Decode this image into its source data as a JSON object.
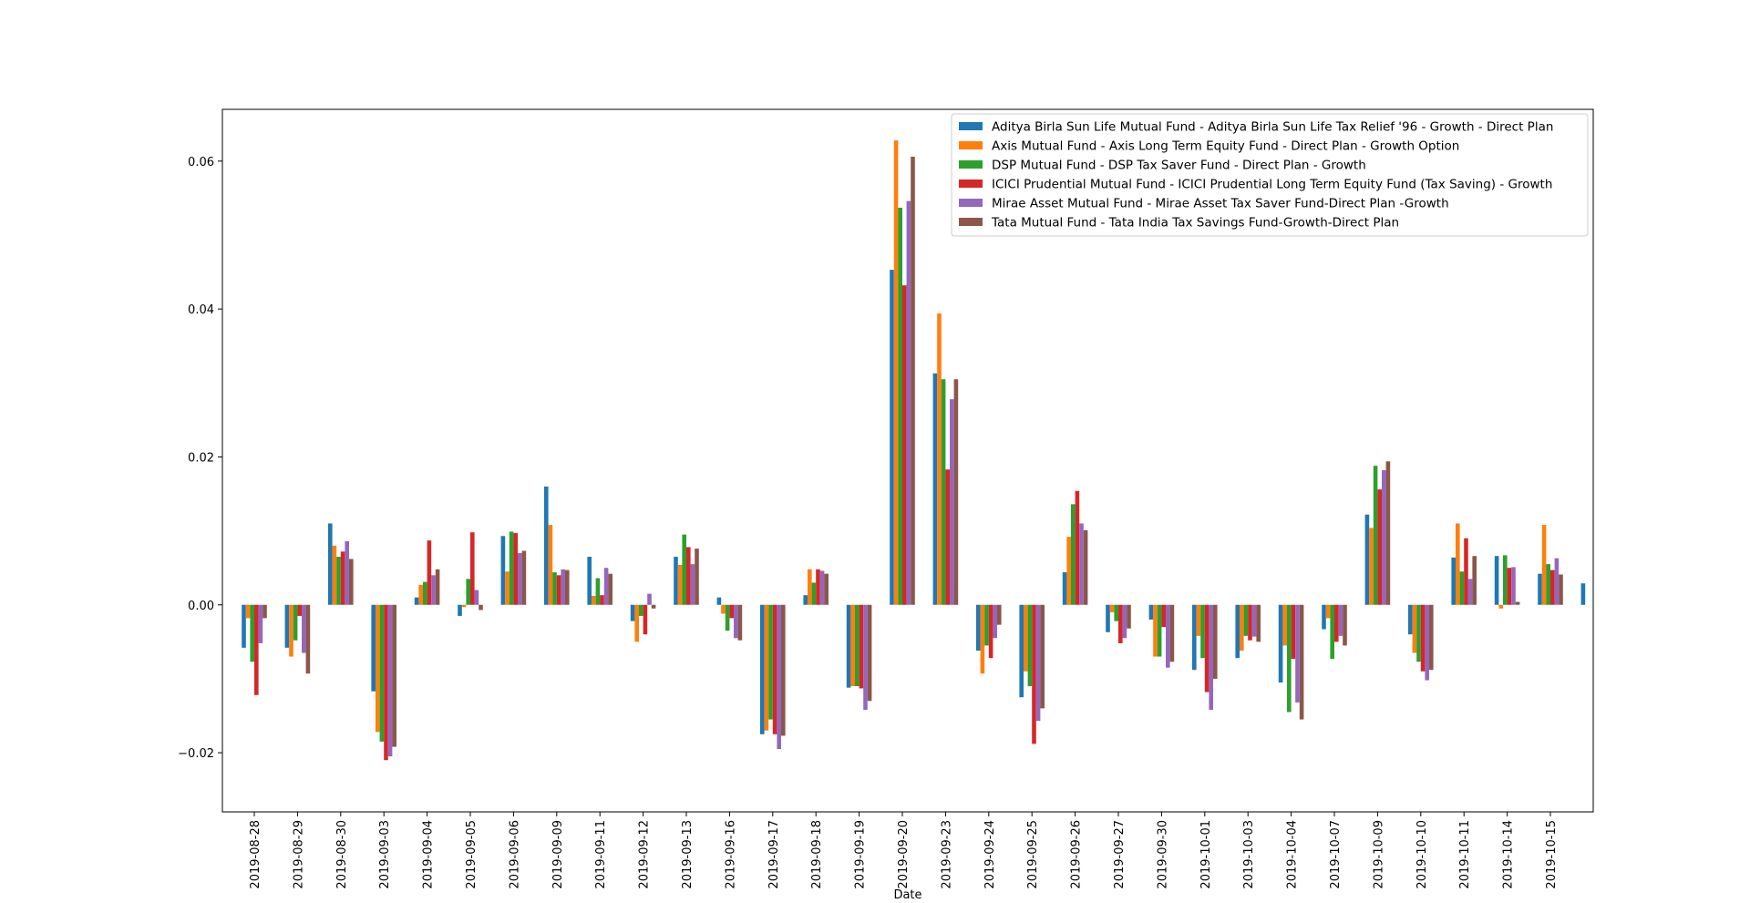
{
  "chart_data": {
    "type": "bar",
    "title": "",
    "xlabel": "Date",
    "ylabel": "",
    "ylim": [
      -0.028,
      0.067
    ],
    "yticks": [
      -0.02,
      0.0,
      0.02,
      0.04,
      0.06
    ],
    "ytick_labels": [
      "−0.02",
      "0.00",
      "0.02",
      "0.04",
      "0.06"
    ],
    "grid": false,
    "legend_position": "top-right",
    "categories": [
      "2019-08-28",
      "2019-08-29",
      "2019-08-30",
      "2019-09-03",
      "2019-09-04",
      "2019-09-05",
      "2019-09-06",
      "2019-09-09",
      "2019-09-11",
      "2019-09-12",
      "2019-09-13",
      "2019-09-16",
      "2019-09-17",
      "2019-09-18",
      "2019-09-19",
      "2019-09-20",
      "2019-09-23",
      "2019-09-24",
      "2019-09-25",
      "2019-09-26",
      "2019-09-27",
      "2019-09-30",
      "2019-10-01",
      "2019-10-03",
      "2019-10-04",
      "2019-10-07",
      "2019-10-09",
      "2019-10-10",
      "2019-10-11",
      "2019-10-14",
      "2019-10-15",
      ""
    ],
    "series": [
      {
        "name": "Aditya Birla Sun Life Mutual Fund - Aditya Birla Sun Life Tax Relief '96 - Growth - Direct Plan",
        "color": "#1f77b4",
        "values": [
          -0.0058,
          -0.0058,
          0.011,
          -0.0117,
          0.001,
          -0.0015,
          0.0093,
          0.016,
          0.0065,
          -0.0022,
          0.0065,
          0.001,
          -0.0175,
          0.0013,
          -0.0112,
          0.0453,
          0.0313,
          -0.0062,
          -0.0125,
          0.0044,
          -0.0037,
          -0.002,
          -0.0088,
          -0.0072,
          -0.0105,
          -0.0033,
          0.0122,
          -0.004,
          0.0064,
          0.0066,
          0.0042,
          0.0029
        ]
      },
      {
        "name": "Axis Mutual Fund - Axis Long Term Equity Fund - Direct Plan - Growth Option",
        "color": "#ff7f0e",
        "values": [
          -0.0018,
          -0.007,
          0.008,
          -0.0172,
          0.0027,
          -0.0003,
          0.0045,
          0.0108,
          0.0012,
          -0.005,
          0.0054,
          -0.0012,
          -0.017,
          0.0048,
          -0.011,
          0.0628,
          0.0394,
          -0.0093,
          -0.009,
          0.0092,
          -0.001,
          -0.007,
          -0.0042,
          -0.0062,
          -0.0055,
          -0.0018,
          0.0104,
          -0.0065,
          0.011,
          -0.0005,
          0.0108,
          0
        ]
      },
      {
        "name": "DSP Mutual Fund - DSP Tax Saver Fund - Direct Plan - Growth",
        "color": "#2ca02c",
        "values": [
          -0.0077,
          -0.0048,
          0.0065,
          -0.0185,
          0.0031,
          0.0035,
          0.0099,
          0.0044,
          0.0036,
          -0.0015,
          0.0095,
          -0.0035,
          -0.0155,
          0.003,
          -0.011,
          0.0537,
          0.0305,
          -0.0055,
          -0.011,
          0.0136,
          -0.0022,
          -0.007,
          -0.0072,
          -0.0042,
          -0.0145,
          -0.0073,
          0.0188,
          -0.0077,
          0.0045,
          0.0067,
          0.0055,
          0
        ]
      },
      {
        "name": "ICICI Prudential Mutual Fund - ICICI Prudential Long Term Equity Fund (Tax Saving) - Growth",
        "color": "#d62728",
        "values": [
          -0.0122,
          -0.0015,
          0.0072,
          -0.021,
          0.0087,
          0.0098,
          0.0097,
          0.004,
          0.0013,
          -0.004,
          0.0078,
          -0.0018,
          -0.0175,
          0.0048,
          -0.0113,
          0.0432,
          0.0183,
          -0.0072,
          -0.0188,
          0.0154,
          -0.0052,
          -0.003,
          -0.0118,
          -0.0048,
          -0.0073,
          -0.005,
          0.0156,
          -0.009,
          0.009,
          0.005,
          0.0047,
          0
        ]
      },
      {
        "name": "Mirae Asset Mutual Fund - Mirae Asset Tax Saver Fund-Direct Plan -Growth",
        "color": "#9467bd",
        "values": [
          -0.0052,
          -0.0065,
          0.0086,
          -0.0205,
          0.004,
          0.002,
          0.007,
          0.0048,
          0.005,
          0.0015,
          0.0055,
          -0.0045,
          -0.0195,
          0.0046,
          -0.0142,
          0.0546,
          0.0278,
          -0.0045,
          -0.0157,
          0.011,
          -0.0045,
          -0.0085,
          -0.0142,
          -0.0043,
          -0.0132,
          -0.0042,
          0.0182,
          -0.0102,
          0.0035,
          0.0051,
          0.0063,
          0
        ]
      },
      {
        "name": "Tata Mutual Fund - Tata India Tax Savings Fund-Growth-Direct Plan",
        "color": "#8c564b",
        "values": [
          -0.0018,
          -0.0093,
          0.0062,
          -0.0192,
          0.0048,
          -0.0007,
          0.0073,
          0.0047,
          0.0042,
          -0.0005,
          0.0076,
          -0.0048,
          -0.0177,
          0.0042,
          -0.013,
          0.0606,
          0.0305,
          -0.0027,
          -0.014,
          0.0101,
          -0.0032,
          -0.0077,
          -0.01,
          -0.005,
          -0.0155,
          -0.0055,
          0.0194,
          -0.0088,
          0.0066,
          0.0004,
          0.0041,
          0
        ]
      }
    ]
  }
}
